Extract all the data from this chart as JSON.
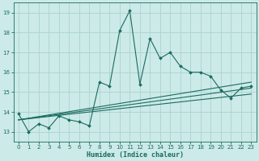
{
  "title": "",
  "xlabel": "Humidex (Indice chaleur)",
  "ylabel": "",
  "bg_color": "#cceae7",
  "grid_color": "#aad4cf",
  "line_color": "#1a6b60",
  "xlim": [
    -0.5,
    23.5
  ],
  "ylim": [
    12.5,
    19.5
  ],
  "xticks": [
    0,
    1,
    2,
    3,
    4,
    5,
    6,
    7,
    8,
    9,
    10,
    11,
    12,
    13,
    14,
    15,
    16,
    17,
    18,
    19,
    20,
    21,
    22,
    23
  ],
  "yticks": [
    13,
    14,
    15,
    16,
    17,
    18,
    19
  ],
  "series1_x": [
    0,
    1,
    2,
    3,
    4,
    5,
    6,
    7,
    8,
    9,
    10,
    11,
    12,
    13,
    14,
    15,
    16,
    17,
    18,
    19,
    20,
    21,
    22,
    23
  ],
  "series1_y": [
    13.9,
    13.0,
    13.4,
    13.2,
    13.8,
    13.6,
    13.5,
    13.3,
    15.5,
    15.3,
    18.1,
    19.1,
    15.4,
    17.7,
    16.7,
    17.0,
    16.3,
    16.0,
    16.0,
    15.8,
    15.1,
    14.7,
    15.2,
    15.3
  ],
  "series2_x": [
    0,
    23
  ],
  "series2_y": [
    13.6,
    15.5
  ],
  "series3_x": [
    0,
    23
  ],
  "series3_y": [
    13.6,
    15.2
  ],
  "series4_x": [
    0,
    23
  ],
  "series4_y": [
    13.6,
    14.9
  ]
}
